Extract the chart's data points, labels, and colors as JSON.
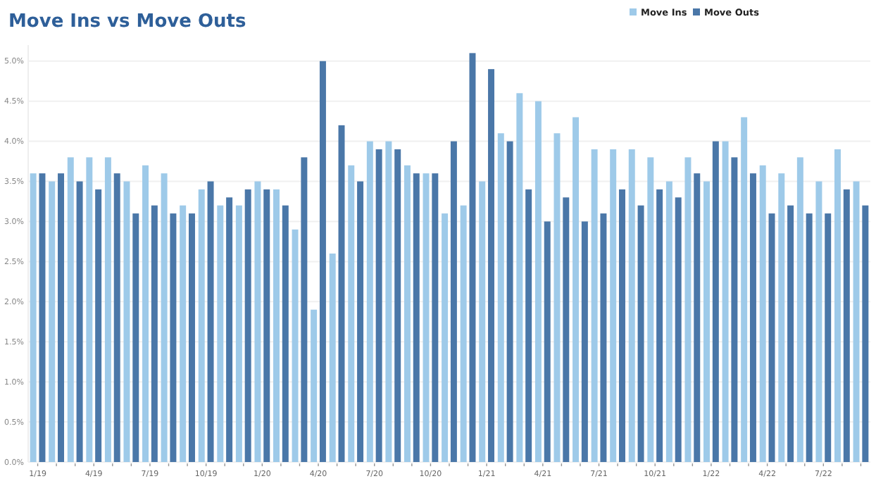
{
  "chart_data": {
    "type": "bar",
    "title": "Move Ins vs Move Outs",
    "categories": [
      "1/19",
      null,
      null,
      "4/19",
      null,
      null,
      "7/19",
      null,
      null,
      "10/19",
      null,
      null,
      "1/20",
      null,
      null,
      "4/20",
      null,
      null,
      "7/20",
      null,
      null,
      "10/20",
      null,
      null,
      "1/21",
      null,
      null,
      "4/21",
      null,
      null,
      "7/21",
      null,
      null,
      "10/21",
      null,
      null,
      "1/22",
      null,
      null,
      "4/22",
      null,
      null,
      "7/22",
      null,
      null
    ],
    "series": [
      {
        "name": "Move Ins",
        "color": "#9ecae9",
        "values": [
          3.6,
          3.5,
          3.8,
          3.8,
          3.8,
          3.5,
          3.7,
          3.6,
          3.2,
          3.4,
          3.2,
          3.2,
          3.5,
          3.4,
          2.9,
          1.9,
          2.6,
          3.7,
          4.0,
          4.0,
          3.7,
          3.6,
          3.1,
          3.2,
          3.5,
          4.1,
          4.6,
          4.5,
          4.1,
          4.3,
          3.9,
          3.9,
          3.9,
          3.8,
          3.5,
          3.8,
          3.5,
          4.0,
          4.3,
          3.7,
          3.6,
          3.8,
          3.5,
          3.9,
          3.5
        ]
      },
      {
        "name": "Move Outs",
        "color": "#4a77a8",
        "values": [
          3.6,
          3.6,
          3.5,
          3.4,
          3.6,
          3.1,
          3.2,
          3.1,
          3.1,
          3.5,
          3.3,
          3.4,
          3.4,
          3.2,
          3.8,
          5.0,
          4.2,
          3.5,
          3.9,
          3.9,
          3.6,
          3.6,
          4.0,
          5.1,
          4.9,
          4.0,
          3.4,
          3.0,
          3.3,
          3.0,
          3.1,
          3.4,
          3.2,
          3.4,
          3.3,
          3.6,
          4.0,
          3.8,
          3.6,
          3.1,
          3.2,
          3.1,
          3.1,
          3.4,
          3.2
        ]
      }
    ],
    "ylim": [
      0,
      5.2
    ],
    "yticks": [
      {
        "value": 0,
        "label": "0.0%"
      },
      {
        "value": 0.5,
        "label": "0.5%"
      },
      {
        "value": 1,
        "label": "1.0%"
      },
      {
        "value": 1.5,
        "label": "1.5%"
      },
      {
        "value": 2,
        "label": "2.0%"
      },
      {
        "value": 2.5,
        "label": "2.5%"
      },
      {
        "value": 3,
        "label": "3.0%"
      },
      {
        "value": 3.5,
        "label": "3.5%"
      },
      {
        "value": 4,
        "label": "4.0%"
      },
      {
        "value": 4.5,
        "label": "4.5%"
      },
      {
        "value": 5,
        "label": "5.0%"
      }
    ],
    "grid": "y",
    "legend": "top right"
  }
}
